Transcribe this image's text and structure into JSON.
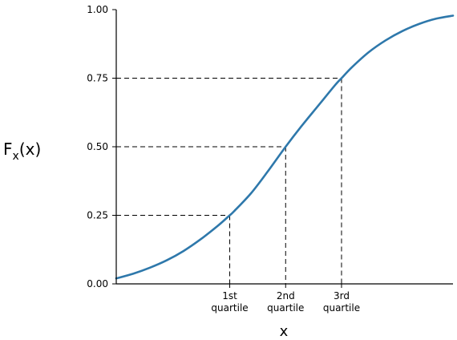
{
  "chart_data": {
    "type": "line",
    "xlabel": "x",
    "ylabel": {
      "base": "F",
      "subscript": "x",
      "suffix": "(x)"
    },
    "xlim": [
      0,
      1
    ],
    "ylim": [
      0,
      1
    ],
    "yticks": [
      0.0,
      0.25,
      0.5,
      0.75,
      1.0
    ],
    "ytick_labels": [
      "0.00",
      "0.25",
      "0.50",
      "0.75",
      "1.00"
    ],
    "xticks": [
      {
        "x": 0.337,
        "lines": [
          "1st",
          "quartile"
        ]
      },
      {
        "x": 0.503,
        "lines": [
          "2nd",
          "quartile"
        ]
      },
      {
        "x": 0.669,
        "lines": [
          "3rd",
          "quartile"
        ]
      }
    ],
    "grid": false,
    "series": [
      {
        "color": "#2e78ab",
        "x": [
          0.0,
          0.05,
          0.1,
          0.15,
          0.2,
          0.25,
          0.3,
          0.337,
          0.35,
          0.4,
          0.45,
          0.503,
          0.55,
          0.6,
          0.65,
          0.669,
          0.7,
          0.75,
          0.8,
          0.85,
          0.9,
          0.95,
          1.0
        ],
        "y": [
          0.02,
          0.037,
          0.059,
          0.086,
          0.12,
          0.162,
          0.21,
          0.25,
          0.265,
          0.33,
          0.41,
          0.5,
          0.575,
          0.65,
          0.725,
          0.75,
          0.79,
          0.845,
          0.888,
          0.922,
          0.948,
          0.967,
          0.978
        ]
      }
    ],
    "reference_lines": [
      {
        "x": 0.337,
        "y": 0.25
      },
      {
        "x": 0.503,
        "y": 0.5
      },
      {
        "x": 0.669,
        "y": 0.75
      }
    ]
  }
}
